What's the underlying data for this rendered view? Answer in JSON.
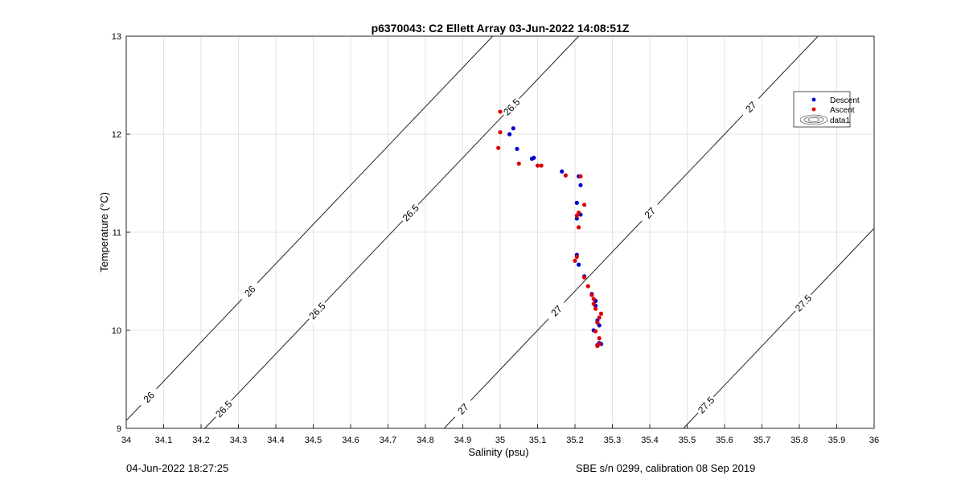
{
  "chart_data": {
    "type": "scatter",
    "title": "p6370043: C2 Ellett Array 03-Jun-2022 14:08:51Z",
    "xlabel": "Salinity (psu)",
    "ylabel": "Temperature (°C)",
    "xlim": [
      34,
      36
    ],
    "ylim": [
      9,
      13
    ],
    "xticks": [
      "34",
      "34.1",
      "34.2",
      "34.3",
      "34.4",
      "34.5",
      "34.6",
      "34.7",
      "34.8",
      "34.9",
      "35",
      "35.1",
      "35.2",
      "35.3",
      "35.4",
      "35.5",
      "35.6",
      "35.7",
      "35.8",
      "35.9",
      "36"
    ],
    "yticks": [
      "9",
      "10",
      "11",
      "12",
      "13"
    ],
    "grid": true,
    "legend_position": "top-right",
    "legend": [
      "Descent",
      "Ascent",
      "data1"
    ],
    "series": [
      {
        "name": "Descent",
        "color": "#0000cc",
        "points": [
          [
            35.035,
            12.06
          ],
          [
            35.025,
            12.0
          ],
          [
            35.045,
            11.85
          ],
          [
            35.09,
            11.76
          ],
          [
            35.085,
            11.75
          ],
          [
            35.165,
            11.62
          ],
          [
            35.21,
            11.57
          ],
          [
            35.215,
            11.48
          ],
          [
            35.205,
            11.3
          ],
          [
            35.215,
            11.18
          ],
          [
            35.205,
            11.14
          ],
          [
            35.205,
            10.77
          ],
          [
            35.21,
            10.67
          ],
          [
            35.225,
            10.55
          ],
          [
            35.245,
            10.37
          ],
          [
            35.255,
            10.3
          ],
          [
            35.255,
            10.25
          ],
          [
            35.26,
            10.1
          ],
          [
            35.265,
            10.05
          ],
          [
            35.25,
            10.0
          ],
          [
            35.265,
            9.87
          ],
          [
            35.27,
            9.86
          ],
          [
            35.26,
            9.85
          ]
        ]
      },
      {
        "name": "Ascent",
        "color": "#dd0000",
        "points": [
          [
            35.0,
            12.23
          ],
          [
            35.0,
            12.02
          ],
          [
            34.995,
            11.86
          ],
          [
            35.05,
            11.7
          ],
          [
            35.1,
            11.68
          ],
          [
            35.11,
            11.68
          ],
          [
            35.175,
            11.58
          ],
          [
            35.215,
            11.57
          ],
          [
            35.225,
            11.28
          ],
          [
            35.21,
            11.2
          ],
          [
            35.205,
            11.17
          ],
          [
            35.21,
            11.05
          ],
          [
            35.205,
            10.75
          ],
          [
            35.2,
            10.71
          ],
          [
            35.225,
            10.54
          ],
          [
            35.235,
            10.45
          ],
          [
            35.245,
            10.36
          ],
          [
            35.25,
            10.32
          ],
          [
            35.25,
            10.27
          ],
          [
            35.255,
            10.22
          ],
          [
            35.27,
            10.17
          ],
          [
            35.265,
            10.13
          ],
          [
            35.26,
            10.08
          ],
          [
            35.255,
            9.99
          ],
          [
            35.265,
            9.92
          ],
          [
            35.265,
            9.86
          ],
          [
            35.26,
            9.84
          ]
        ]
      }
    ],
    "contours": [
      {
        "level": "26",
        "labels": [
          "26",
          "26"
        ]
      },
      {
        "level": "26.5",
        "labels": [
          "26.5",
          "26.5",
          "26.5",
          "26.5"
        ]
      },
      {
        "level": "27",
        "labels": [
          "27",
          "27",
          "27",
          "27"
        ]
      },
      {
        "level": "27.5",
        "labels": [
          "27.5",
          "27.5"
        ]
      }
    ]
  },
  "footer": {
    "left": "04-Jun-2022 18:27:25",
    "right": "SBE s/n 0299, calibration 08 Sep 2019"
  }
}
